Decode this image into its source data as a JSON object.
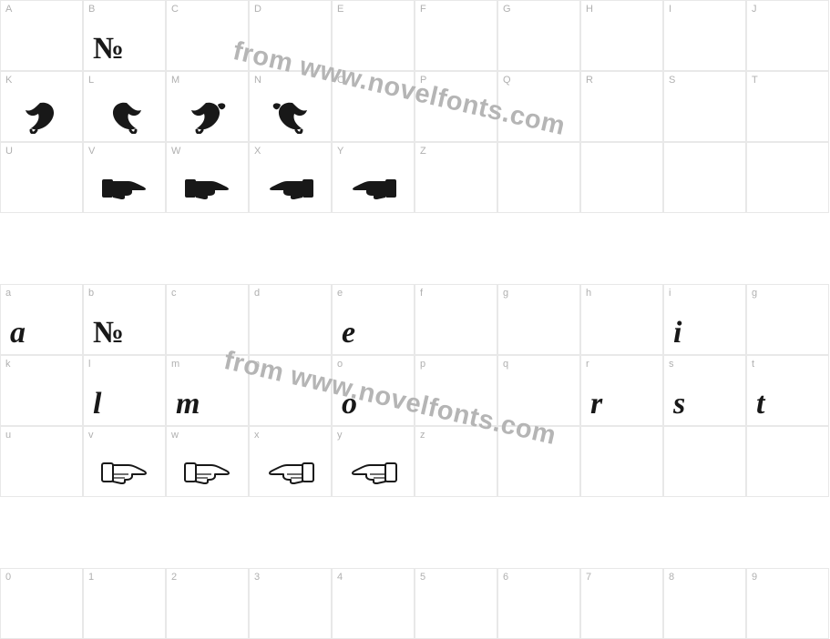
{
  "watermark_text": "from www.novelfonts.com",
  "watermark_color": "#b5b5b5",
  "border_color": "#e8e8e8",
  "label_color": "#b0b0b0",
  "glyph_color": "#181818",
  "rows": [
    {
      "labels": [
        "A",
        "B",
        "C",
        "D",
        "E",
        "F",
        "G",
        "H",
        "I",
        "J"
      ],
      "glyphs": [
        "",
        "№",
        "",
        "",
        "",
        "",
        "",
        "",
        "",
        ""
      ],
      "types": [
        "",
        "numero",
        "",
        "",
        "",
        "",
        "",
        "",
        "",
        ""
      ]
    },
    {
      "labels": [
        "K",
        "L",
        "M",
        "N",
        "O",
        "P",
        "Q",
        "R",
        "S",
        "T"
      ],
      "glyphs": [
        "",
        "",
        "",
        "",
        "",
        "",
        "",
        "",
        "",
        ""
      ],
      "types": [
        "leaf-r",
        "leaf-l",
        "leaf-stem-r",
        "leaf-stem-l",
        "",
        "",
        "",
        "",
        "",
        ""
      ]
    },
    {
      "labels": [
        "U",
        "V",
        "W",
        "X",
        "Y",
        "Z",
        "",
        "",
        "",
        ""
      ],
      "glyphs": [
        "",
        "",
        "",
        "",
        "",
        "",
        "",
        "",
        "",
        ""
      ],
      "types": [
        "",
        "hand-fill-r",
        "hand-fill-r",
        "hand-fill-l",
        "hand-fill-l",
        "",
        "",
        "",
        "",
        ""
      ]
    },
    {
      "labels": [
        "a",
        "b",
        "c",
        "d",
        "e",
        "f",
        "g",
        "h",
        "i",
        "g"
      ],
      "glyphs": [
        "a",
        "№",
        "",
        "",
        "e",
        "",
        "",
        "",
        "i",
        ""
      ],
      "types": [
        "serif",
        "numero",
        "",
        "",
        "serif",
        "",
        "",
        "",
        "serif",
        ""
      ]
    },
    {
      "labels": [
        "k",
        "l",
        "m",
        "n",
        "o",
        "p",
        "q",
        "r",
        "s",
        "t"
      ],
      "glyphs": [
        "",
        "l",
        "m",
        "",
        "o",
        "",
        "",
        "r",
        "s",
        "t"
      ],
      "types": [
        "",
        "serif",
        "serif",
        "",
        "serif",
        "",
        "",
        "serif",
        "serif",
        "serif"
      ]
    },
    {
      "labels": [
        "u",
        "v",
        "w",
        "x",
        "y",
        "z",
        "",
        "",
        "",
        ""
      ],
      "glyphs": [
        "",
        "",
        "",
        "",
        "",
        "",
        "",
        "",
        "",
        ""
      ],
      "types": [
        "",
        "hand-out-r",
        "hand-out-r",
        "hand-out-l",
        "hand-out-l",
        "",
        "",
        "",
        "",
        ""
      ]
    },
    {
      "labels": [
        "0",
        "1",
        "2",
        "3",
        "4",
        "5",
        "6",
        "7",
        "8",
        "9"
      ],
      "glyphs": [
        "",
        "",
        "",
        "",
        "",
        "",
        "",
        "",
        "",
        ""
      ],
      "types": [
        "",
        "",
        "",
        "",
        "",
        "",
        "",
        "",
        "",
        ""
      ]
    }
  ]
}
